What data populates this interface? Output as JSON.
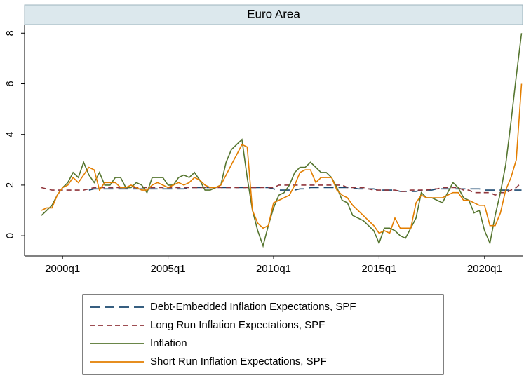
{
  "chart_data": {
    "type": "line",
    "title": "Euro Area",
    "x": [
      1999,
      1999.25,
      1999.5,
      1999.75,
      2000,
      2000.25,
      2000.5,
      2000.75,
      2001,
      2001.25,
      2001.5,
      2001.75,
      2002,
      2002.25,
      2002.5,
      2002.75,
      2003,
      2003.25,
      2003.5,
      2003.75,
      2004,
      2004.25,
      2004.5,
      2004.75,
      2005,
      2005.25,
      2005.5,
      2005.75,
      2006,
      2006.25,
      2006.5,
      2006.75,
      2007,
      2007.25,
      2007.5,
      2007.75,
      2008,
      2008.25,
      2008.5,
      2008.75,
      2009,
      2009.25,
      2009.5,
      2009.75,
      2010,
      2010.25,
      2010.5,
      2010.75,
      2011,
      2011.25,
      2011.5,
      2011.75,
      2012,
      2012.25,
      2012.5,
      2012.75,
      2013,
      2013.25,
      2013.5,
      2013.75,
      2014,
      2014.25,
      2014.5,
      2014.75,
      2015,
      2015.25,
      2015.5,
      2015.75,
      2016,
      2016.25,
      2016.5,
      2016.75,
      2017,
      2017.25,
      2017.5,
      2017.75,
      2018,
      2018.25,
      2018.5,
      2018.75,
      2019,
      2019.25,
      2019.5,
      2019.75,
      2020,
      2020.25,
      2020.5,
      2020.75,
      2021,
      2021.25,
      2021.5,
      2021.75
    ],
    "series": [
      {
        "name": "Debt-Embedded Inflation Expectations, SPF",
        "color": "#1a476f",
        "dash": "long",
        "values": [
          null,
          null,
          null,
          null,
          null,
          null,
          null,
          null,
          null,
          1.8,
          1.85,
          1.85,
          1.85,
          1.85,
          1.85,
          1.85,
          1.85,
          1.85,
          1.85,
          1.85,
          1.85,
          1.85,
          1.85,
          1.85,
          1.85,
          1.85,
          1.85,
          1.85,
          1.9,
          1.9,
          1.9,
          1.9,
          1.9,
          1.9,
          1.9,
          1.9,
          1.9,
          1.9,
          1.9,
          1.9,
          1.9,
          1.9,
          1.9,
          1.9,
          1.85,
          1.8,
          1.8,
          1.8,
          1.8,
          1.85,
          1.85,
          1.9,
          1.9,
          1.9,
          1.9,
          1.9,
          1.9,
          1.9,
          1.9,
          1.9,
          1.85,
          1.85,
          1.85,
          1.85,
          1.8,
          1.8,
          1.8,
          1.8,
          1.75,
          1.75,
          1.75,
          1.75,
          1.8,
          1.8,
          1.8,
          1.85,
          1.85,
          1.85,
          1.85,
          1.85,
          1.85,
          1.85,
          1.85,
          1.85,
          1.8,
          1.8,
          1.8,
          1.8,
          1.8,
          1.8,
          1.8,
          1.8
        ]
      },
      {
        "name": "Long Run Inflation Expectations, SPF",
        "color": "#90353b",
        "dash": "short",
        "values": [
          1.9,
          1.85,
          1.8,
          1.8,
          1.8,
          1.8,
          1.8,
          1.8,
          1.8,
          1.85,
          1.9,
          1.9,
          1.9,
          1.9,
          1.9,
          1.9,
          1.9,
          1.9,
          1.9,
          1.9,
          1.9,
          1.9,
          1.9,
          1.9,
          1.9,
          1.9,
          1.9,
          1.9,
          1.9,
          1.9,
          1.9,
          1.9,
          1.9,
          1.9,
          1.9,
          1.9,
          1.9,
          1.9,
          1.9,
          1.9,
          1.9,
          1.9,
          1.9,
          1.9,
          1.9,
          2.0,
          2.0,
          2.0,
          2.0,
          2.0,
          2.0,
          2.0,
          2.0,
          2.0,
          2.0,
          2.0,
          2.0,
          2.0,
          1.9,
          1.9,
          1.9,
          1.9,
          1.85,
          1.8,
          1.8,
          1.8,
          1.8,
          1.8,
          1.75,
          1.75,
          1.8,
          1.8,
          1.8,
          1.8,
          1.85,
          1.85,
          1.9,
          1.9,
          1.9,
          1.9,
          1.8,
          1.8,
          1.7,
          1.7,
          1.7,
          1.7,
          1.6,
          1.7,
          1.7,
          1.8,
          1.9,
          2.1
        ]
      },
      {
        "name": "Inflation",
        "color": "#55752f",
        "dash": null,
        "values": [
          0.8,
          1.0,
          1.2,
          1.6,
          1.9,
          2.1,
          2.5,
          2.3,
          2.9,
          2.4,
          2.1,
          2.5,
          2.0,
          2.0,
          2.3,
          2.3,
          1.9,
          1.9,
          2.1,
          2.0,
          1.7,
          2.3,
          2.3,
          2.3,
          2.0,
          2.0,
          2.3,
          2.4,
          2.3,
          2.5,
          2.2,
          1.8,
          1.8,
          1.9,
          2.0,
          2.9,
          3.4,
          3.6,
          3.8,
          2.3,
          1.0,
          0.2,
          -0.4,
          0.4,
          1.1,
          1.6,
          1.7,
          2.0,
          2.5,
          2.7,
          2.7,
          2.9,
          2.7,
          2.5,
          2.5,
          2.3,
          1.9,
          1.4,
          1.3,
          0.8,
          0.7,
          0.6,
          0.4,
          0.2,
          -0.3,
          0.3,
          0.3,
          0.2,
          0.0,
          -0.1,
          0.3,
          0.7,
          1.7,
          1.5,
          1.5,
          1.4,
          1.3,
          1.7,
          2.1,
          1.9,
          1.5,
          1.4,
          0.9,
          1.0,
          0.2,
          -0.3,
          0.8,
          1.7,
          2.8,
          4.5,
          6.3,
          8.0
        ]
      },
      {
        "name": "Short Run Inflation Expectations, SPF",
        "color": "#e37e00",
        "dash": null,
        "values": [
          1.0,
          1.1,
          1.1,
          1.6,
          1.9,
          2.0,
          2.3,
          2.1,
          2.4,
          2.7,
          2.6,
          1.8,
          2.1,
          2.1,
          2.1,
          1.9,
          1.9,
          2.0,
          1.9,
          1.8,
          1.8,
          2.0,
          2.1,
          2.0,
          1.9,
          2.0,
          2.1,
          2.0,
          2.1,
          2.3,
          2.2,
          2.0,
          1.9,
          1.9,
          2.0,
          2.4,
          2.8,
          3.2,
          3.6,
          3.5,
          1.0,
          0.5,
          0.3,
          0.4,
          1.3,
          1.4,
          1.5,
          1.6,
          2.0,
          2.5,
          2.6,
          2.6,
          2.1,
          2.3,
          2.3,
          2.3,
          1.8,
          1.6,
          1.5,
          1.2,
          1.0,
          0.8,
          0.6,
          0.4,
          0.1,
          0.2,
          0.1,
          0.7,
          0.3,
          0.3,
          0.3,
          1.3,
          1.6,
          1.5,
          1.5,
          1.5,
          1.5,
          1.6,
          1.7,
          1.7,
          1.4,
          1.4,
          1.3,
          1.2,
          1.2,
          0.4,
          0.4,
          0.9,
          1.8,
          2.3,
          3.0,
          6.0
        ]
      }
    ],
    "xlim": [
      1998.2,
      2021.8
    ],
    "ylim": [
      -0.8,
      8.34
    ],
    "xticks": [
      {
        "value": 2000,
        "label": "2000q1"
      },
      {
        "value": 2005,
        "label": "2005q1"
      },
      {
        "value": 2010,
        "label": "2010q1"
      },
      {
        "value": 2015,
        "label": "2015q1"
      },
      {
        "value": 2020,
        "label": "2020q1"
      }
    ],
    "yticks": [
      0,
      2,
      4,
      6,
      8
    ],
    "legend": "bottom"
  }
}
